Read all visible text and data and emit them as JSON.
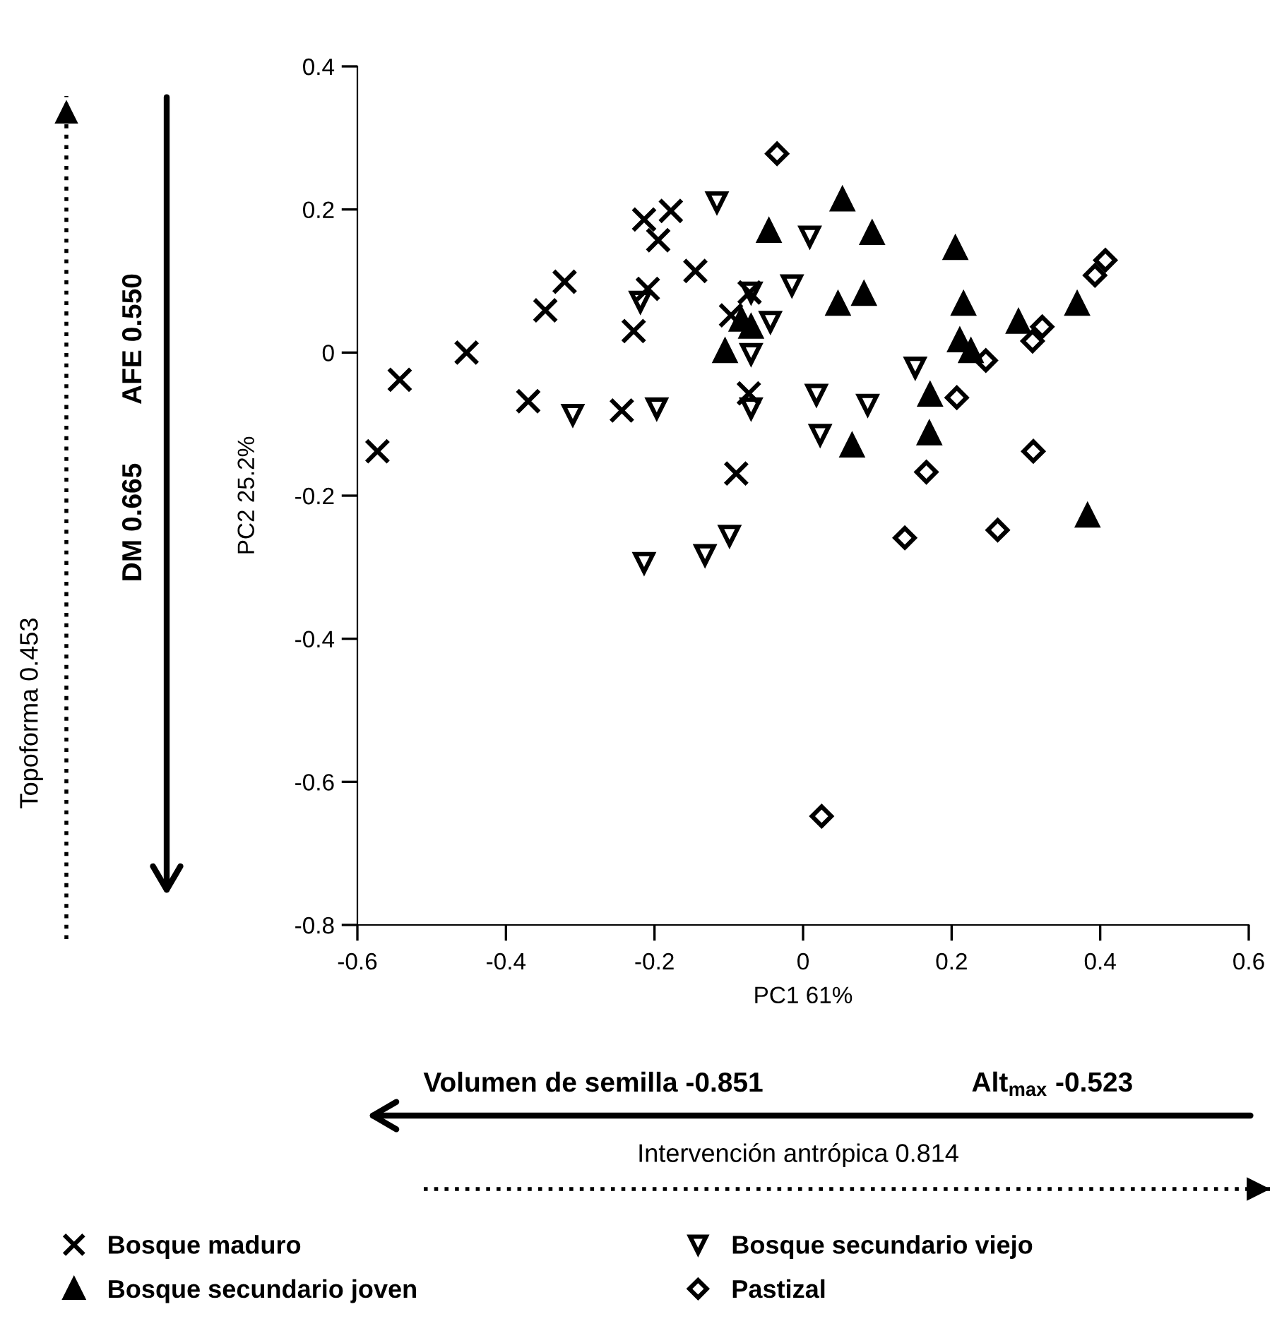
{
  "chart_data": {
    "type": "scatter",
    "xlabel": "PC1 61%",
    "ylabel": "PC2 25.2%",
    "xlim": [
      -0.6,
      0.6
    ],
    "xticks": [
      -0.6,
      -0.4,
      -0.2,
      0,
      0.2,
      0.4,
      0.6
    ],
    "ylim": [
      -0.8,
      0.4
    ],
    "yticks": [
      -0.8,
      -0.6,
      -0.4,
      -0.2,
      0,
      0.2,
      0.4
    ],
    "grid": false,
    "legend": "bottom",
    "annotations": [
      "Topoforma 0.453",
      "DM 0.665",
      "AFE 0.550",
      "Volumen de semilla -0.851",
      "Alt$_{max}$ -0.523",
      "Intervención antrópica 0.814"
    ],
    "series": [
      {
        "name": "Bosque maduro",
        "color": "#000000",
        "marker": "cross",
        "x": [
          -0.573,
          -0.543,
          -0.453,
          -0.37,
          -0.347,
          -0.321,
          -0.244,
          -0.228,
          -0.214,
          -0.209,
          -0.195,
          -0.178,
          -0.145,
          -0.097,
          -0.09,
          -0.073,
          -0.072
        ],
        "values": [
          -0.138,
          -0.038,
          0.0,
          -0.068,
          0.059,
          0.099,
          -0.081,
          0.03,
          0.186,
          0.089,
          0.157,
          0.198,
          0.114,
          0.052,
          -0.169,
          -0.057,
          0.084
        ]
      },
      {
        "name": "Bosque secundario joven",
        "color": "#000000",
        "marker": "triangle",
        "x": [
          0.053,
          0.093,
          0.205,
          0.082,
          0.047,
          0.216,
          0.211,
          0.226,
          0.29,
          0.369,
          0.171,
          0.17,
          0.066,
          0.383,
          -0.046,
          -0.105,
          -0.083,
          -0.07
        ],
        "values": [
          0.214,
          0.167,
          0.146,
          0.082,
          0.068,
          0.068,
          0.017,
          0.002,
          0.043,
          0.068,
          -0.059,
          -0.113,
          -0.13,
          -0.228,
          0.17,
          0.002,
          0.046,
          0.036
        ]
      },
      {
        "name": "Bosque secundario viejo",
        "color": "#000000",
        "marker": "triangle_down",
        "x": [
          -0.116,
          -0.31,
          -0.197,
          -0.219,
          -0.07,
          -0.015,
          -0.044,
          -0.07,
          -0.07,
          0.009,
          0.151,
          0.018,
          0.087,
          0.023,
          -0.214,
          -0.132,
          -0.099
        ],
        "values": [
          0.21,
          -0.087,
          -0.078,
          0.071,
          0.084,
          0.094,
          0.043,
          -0.002,
          -0.078,
          0.162,
          -0.021,
          -0.059,
          -0.073,
          -0.115,
          -0.294,
          -0.283,
          -0.256
        ]
      },
      {
        "name": "Pastizal",
        "color": "#000000",
        "marker": "diamond",
        "x": [
          -0.035,
          0.407,
          0.393,
          0.322,
          0.309,
          0.246,
          0.207,
          0.31,
          0.166,
          0.137,
          0.262,
          0.025
        ],
        "values": [
          0.278,
          0.129,
          0.108,
          0.036,
          0.016,
          -0.011,
          -0.063,
          -0.138,
          -0.167,
          -0.259,
          -0.248,
          -0.648
        ]
      }
    ]
  }
}
